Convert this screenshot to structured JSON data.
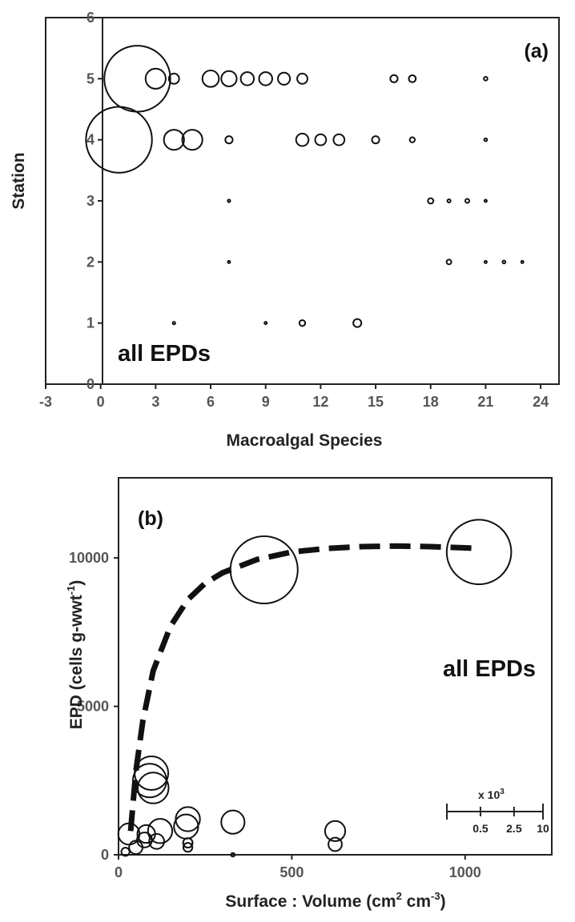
{
  "chart_data": [
    {
      "type": "bubble",
      "panel_label": "(a)",
      "annotation": "all EPDs",
      "xlabel": "Macroalgal Species",
      "ylabel": "Station",
      "xlim": [
        -3,
        25
      ],
      "ylim": [
        0,
        6
      ],
      "x_ticks": [
        "-3",
        "0",
        "3",
        "6",
        "9",
        "12",
        "15",
        "18",
        "21",
        "24"
      ],
      "y_ticks": [
        "0",
        "1",
        "2",
        "3",
        "4",
        "5",
        "6"
      ],
      "points": [
        {
          "x": 2,
          "y": 5,
          "r": 1.8
        },
        {
          "x": 3,
          "y": 5,
          "r": 0.55
        },
        {
          "x": 4,
          "y": 5,
          "r": 0.28
        },
        {
          "x": 6,
          "y": 5,
          "r": 0.45
        },
        {
          "x": 7,
          "y": 5,
          "r": 0.42
        },
        {
          "x": 8,
          "y": 5,
          "r": 0.36
        },
        {
          "x": 9,
          "y": 5,
          "r": 0.36
        },
        {
          "x": 10,
          "y": 5,
          "r": 0.33
        },
        {
          "x": 11,
          "y": 5,
          "r": 0.28
        },
        {
          "x": 16,
          "y": 5,
          "r": 0.2
        },
        {
          "x": 17,
          "y": 5,
          "r": 0.19
        },
        {
          "x": 21,
          "y": 5,
          "r": 0.1
        },
        {
          "x": 1,
          "y": 4,
          "r": 1.8
        },
        {
          "x": 4,
          "y": 4,
          "r": 0.55
        },
        {
          "x": 5,
          "y": 4,
          "r": 0.55
        },
        {
          "x": 7,
          "y": 4,
          "r": 0.2
        },
        {
          "x": 11,
          "y": 4,
          "r": 0.34
        },
        {
          "x": 12,
          "y": 4,
          "r": 0.3
        },
        {
          "x": 13,
          "y": 4,
          "r": 0.3
        },
        {
          "x": 15,
          "y": 4,
          "r": 0.2
        },
        {
          "x": 17,
          "y": 4,
          "r": 0.14
        },
        {
          "x": 21,
          "y": 4,
          "r": 0.08
        },
        {
          "x": 7,
          "y": 3,
          "r": 0.07
        },
        {
          "x": 18,
          "y": 3,
          "r": 0.15
        },
        {
          "x": 19,
          "y": 3,
          "r": 0.09
        },
        {
          "x": 20,
          "y": 3,
          "r": 0.11
        },
        {
          "x": 21,
          "y": 3,
          "r": 0.02
        },
        {
          "x": 7,
          "y": 2,
          "r": 0.04
        },
        {
          "x": 19,
          "y": 2,
          "r": 0.13
        },
        {
          "x": 21,
          "y": 2,
          "r": 0.05
        },
        {
          "x": 22,
          "y": 2,
          "r": 0.08
        },
        {
          "x": 23,
          "y": 2,
          "r": 0.05
        },
        {
          "x": 4,
          "y": 1,
          "r": 0.07
        },
        {
          "x": 9,
          "y": 1,
          "r": 0.05
        },
        {
          "x": 11,
          "y": 1,
          "r": 0.16
        },
        {
          "x": 14,
          "y": 1,
          "r": 0.22
        }
      ]
    },
    {
      "type": "bubble",
      "panel_label": "(b)",
      "annotation": "all EPDs",
      "xlabel_main": "Surface : Volume (cm",
      "xlabel_sup1": "2",
      "xlabel_mid": " cm",
      "xlabel_sup2": "-3",
      "xlabel_end": ")",
      "ylabel_main": "EPD (cells g-wwt",
      "ylabel_sup": "-1",
      "ylabel_end": ")",
      "xlim": [
        0,
        1250
      ],
      "ylim": [
        0,
        12700
      ],
      "x_ticks": [
        "0",
        "500",
        "1000"
      ],
      "y_ticks": [
        "0",
        "5000",
        "10000"
      ],
      "fit_curve": {
        "style": "dashed",
        "x": [
          35,
          50,
          70,
          100,
          150,
          200,
          250,
          300,
          400,
          500,
          600,
          700,
          800,
          900,
          1000,
          1040
        ],
        "y": [
          800,
          2800,
          4500,
          6200,
          7700,
          8600,
          9150,
          9500,
          9950,
          10200,
          10320,
          10380,
          10400,
          10380,
          10340,
          10320
        ]
      },
      "points": [
        {
          "x": 420,
          "y": 9600,
          "size": 10000
        },
        {
          "x": 1040,
          "y": 10200,
          "size": 9200
        },
        {
          "x": 95,
          "y": 2750,
          "size": 2500
        },
        {
          "x": 90,
          "y": 2500,
          "size": 2500
        },
        {
          "x": 100,
          "y": 2250,
          "size": 2100
        },
        {
          "x": 30,
          "y": 700,
          "size": 1000
        },
        {
          "x": 50,
          "y": 250,
          "size": 400
        },
        {
          "x": 75,
          "y": 500,
          "size": 500
        },
        {
          "x": 80,
          "y": 700,
          "size": 700
        },
        {
          "x": 110,
          "y": 450,
          "size": 500
        },
        {
          "x": 120,
          "y": 800,
          "size": 1300
        },
        {
          "x": 200,
          "y": 1200,
          "size": 1300
        },
        {
          "x": 195,
          "y": 950,
          "size": 1300
        },
        {
          "x": 200,
          "y": 400,
          "size": 200
        },
        {
          "x": 200,
          "y": 250,
          "size": 180
        },
        {
          "x": 330,
          "y": 1100,
          "size": 1200
        },
        {
          "x": 330,
          "y": 0,
          "size": 30
        },
        {
          "x": 625,
          "y": 800,
          "size": 900
        },
        {
          "x": 625,
          "y": 350,
          "size": 400
        },
        {
          "x": 20,
          "y": 100,
          "size": 150
        }
      ],
      "size_legend": {
        "title": "x 10",
        "title_sup": "3",
        "labels": [
          "0.5",
          "2.5",
          "10"
        ],
        "values": [
          0.5,
          2.5,
          10
        ]
      }
    }
  ]
}
